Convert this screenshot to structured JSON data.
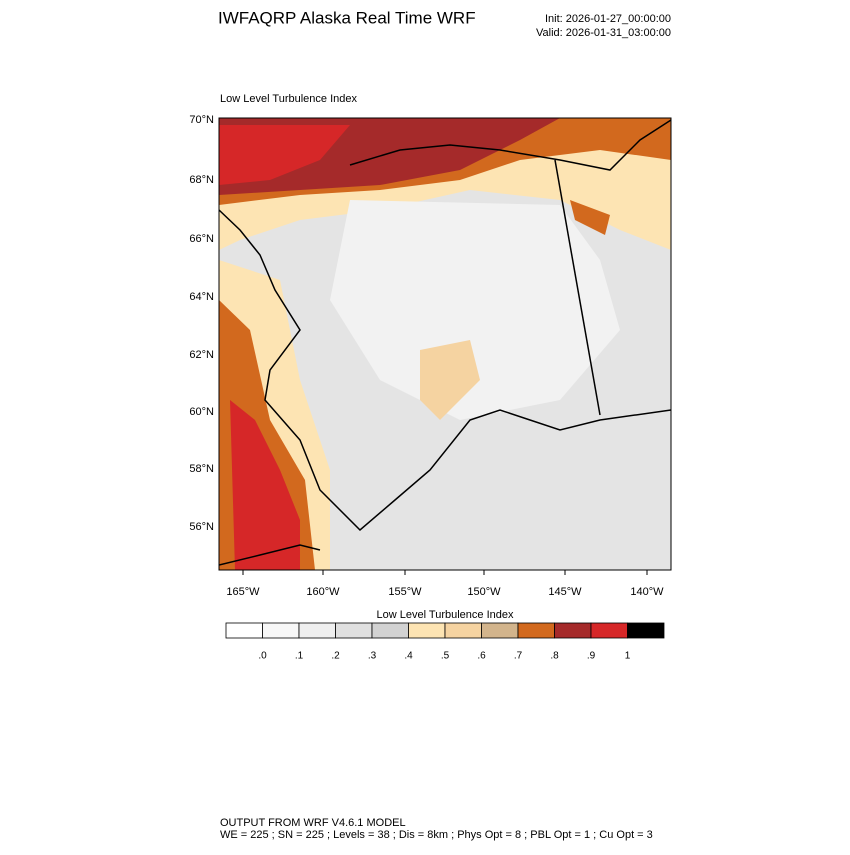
{
  "header": {
    "title": "IWFAQRP Alaska Real Time WRF",
    "init": "Init: 2026-01-27_00:00:00",
    "valid": "Valid: 2026-01-31_03:00:00"
  },
  "map": {
    "title": "Low Level Turbulence Index",
    "lat_labels": [
      "70°N",
      "68°N",
      "66°N",
      "64°N",
      "62°N",
      "60°N",
      "58°N",
      "56°N"
    ],
    "lon_labels": [
      "165°W",
      "160°W",
      "155°W",
      "150°W",
      "145°W",
      "140°W"
    ]
  },
  "colorbar": {
    "title": "Low Level Turbulence Index",
    "colors": [
      "#ffffff",
      "#f7f7f7",
      "#efefef",
      "#e0e0e0",
      "#d2d2d2",
      "#fde4b3",
      "#f5d3a1",
      "#d2b48c",
      "#d2691e",
      "#a52a2a",
      "#d62728",
      "#000000"
    ],
    "labels": [
      ".0",
      ".1",
      ".2",
      ".3",
      ".4",
      ".5",
      ".6",
      ".7",
      ".8",
      ".9",
      "1"
    ]
  },
  "footer": {
    "line1": "OUTPUT FROM WRF V4.6.1 MODEL",
    "line2": "WE = 225 ; SN = 225 ; Levels = 38 ; Dis = 8km ; Phys Opt = 8 ; PBL Opt = 1 ; Cu Opt = 3"
  }
}
